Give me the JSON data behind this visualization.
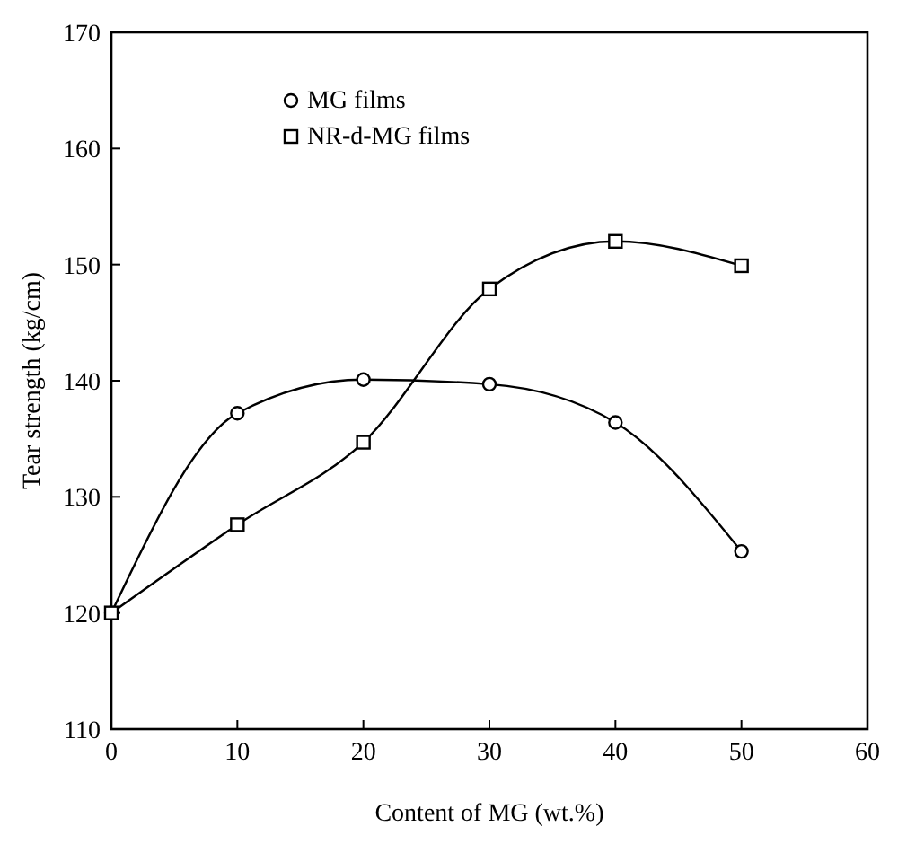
{
  "chart_data": {
    "type": "line",
    "xlabel": "Content of MG (wt.%)",
    "ylabel": "Tear strength (kg/cm)",
    "x": [
      0,
      10,
      20,
      30,
      40,
      50
    ],
    "series": [
      {
        "name": "MG films",
        "color": "#000000",
        "marker": "circle",
        "values": [
          120,
          137.2,
          140.1,
          139.7,
          136.4,
          125.3
        ]
      },
      {
        "name": "NR-d-MG films",
        "color": "#000000",
        "marker": "square",
        "values": [
          120,
          127.6,
          134.7,
          147.9,
          152,
          149.9
        ]
      }
    ],
    "xlim": [
      0,
      60
    ],
    "xticks": [
      0,
      10,
      20,
      30,
      40,
      50,
      60
    ],
    "ylim": [
      110,
      170
    ],
    "yticks": [
      110,
      120,
      130,
      140,
      150,
      160,
      170
    ],
    "grid": false,
    "legend": "top left",
    "line_style": "solid"
  }
}
